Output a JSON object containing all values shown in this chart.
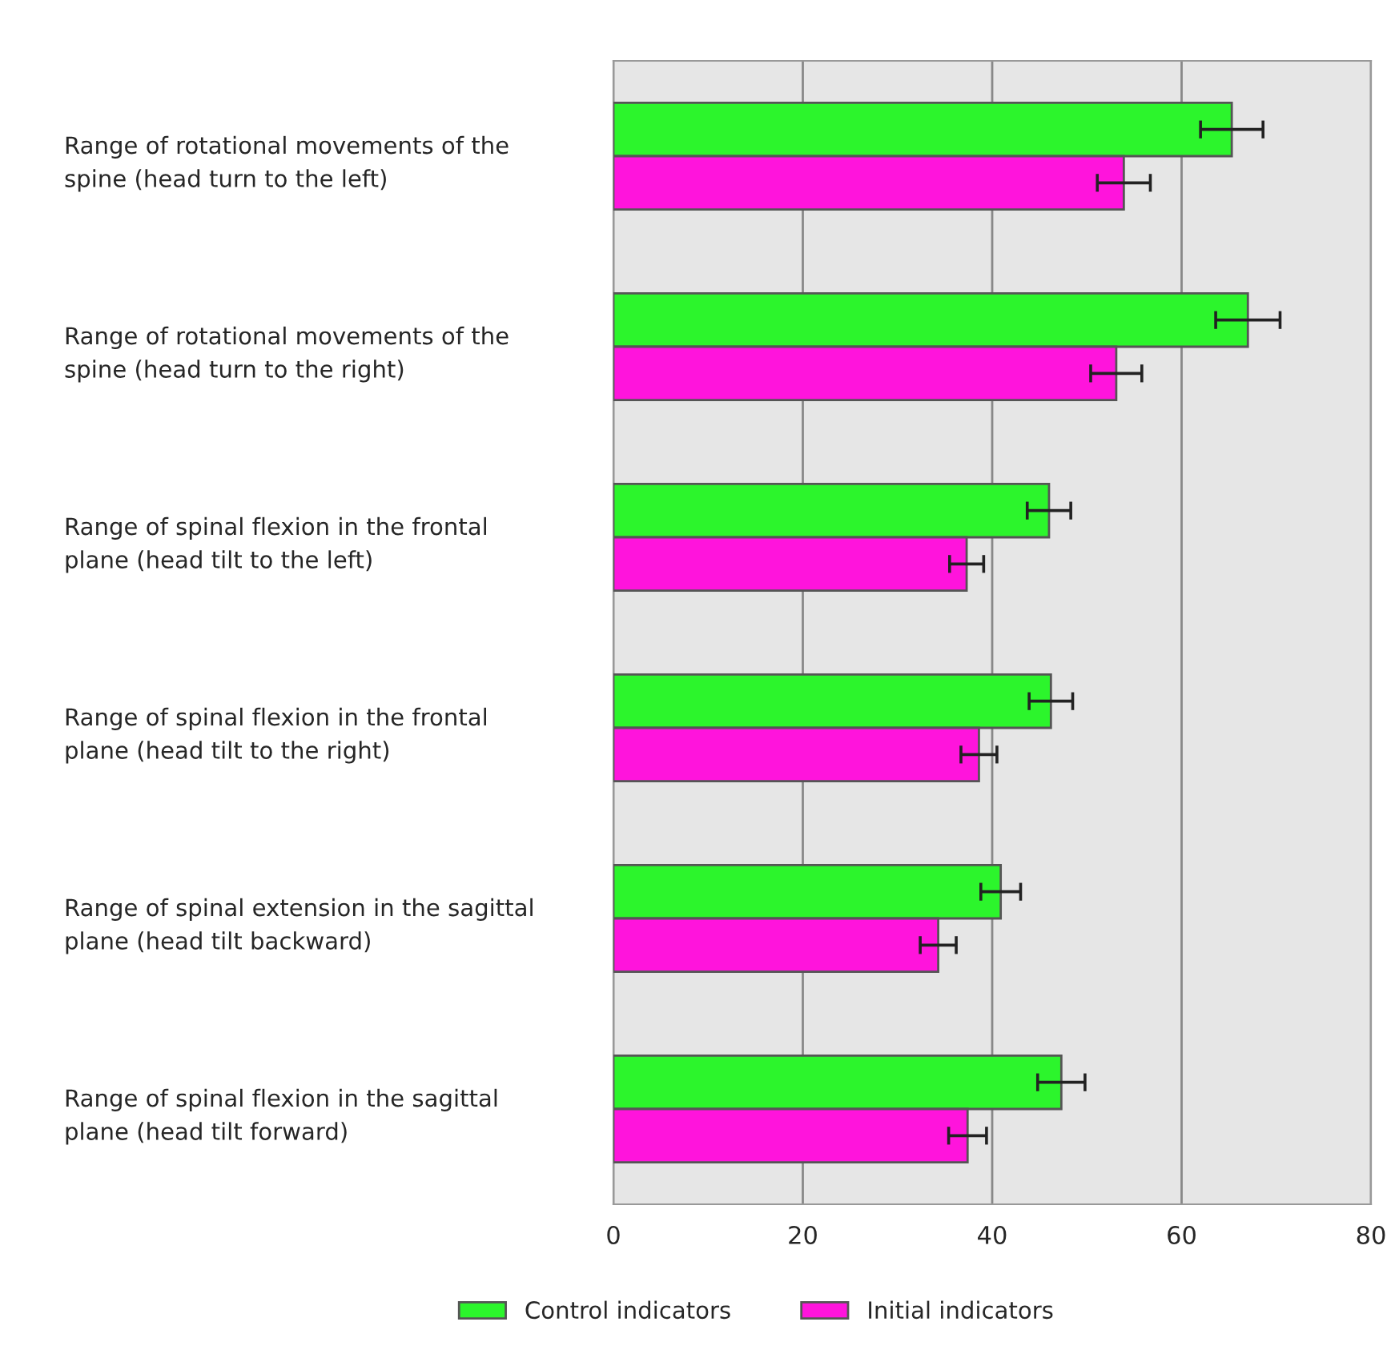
{
  "chart_data": {
    "type": "bar",
    "orientation": "horizontal",
    "categories": [
      "Range of rotational movements of the\nspine (head turn to the left)",
      "Range of rotational movements of the\nspine (head turn to the right)",
      "Range of spinal flexion in the frontal\nplane (head tilt to the left)",
      "Range of spinal flexion in the frontal\nplane (head tilt to the right)",
      "Range of spinal extension in the sagittal\nplane (head tilt backward)",
      "Range of spinal flexion in the sagittal\nplane (head tilt forward)"
    ],
    "series": [
      {
        "name": "Control indicators",
        "color": "#2cf52c",
        "values": [
          65.3,
          67.0,
          46.0,
          46.2,
          40.9,
          47.3
        ],
        "errors": [
          3.3,
          3.4,
          2.3,
          2.3,
          2.1,
          2.5
        ]
      },
      {
        "name": "Initial indicators",
        "color": "#ff14dc",
        "values": [
          53.9,
          53.1,
          37.3,
          38.6,
          34.3,
          37.4
        ],
        "errors": [
          2.8,
          2.7,
          1.8,
          1.9,
          1.9,
          2.0
        ]
      }
    ],
    "xlim": [
      0,
      80
    ],
    "xticks": [
      0,
      20,
      40,
      60,
      80
    ],
    "grid": "x",
    "legend": "bottom"
  }
}
